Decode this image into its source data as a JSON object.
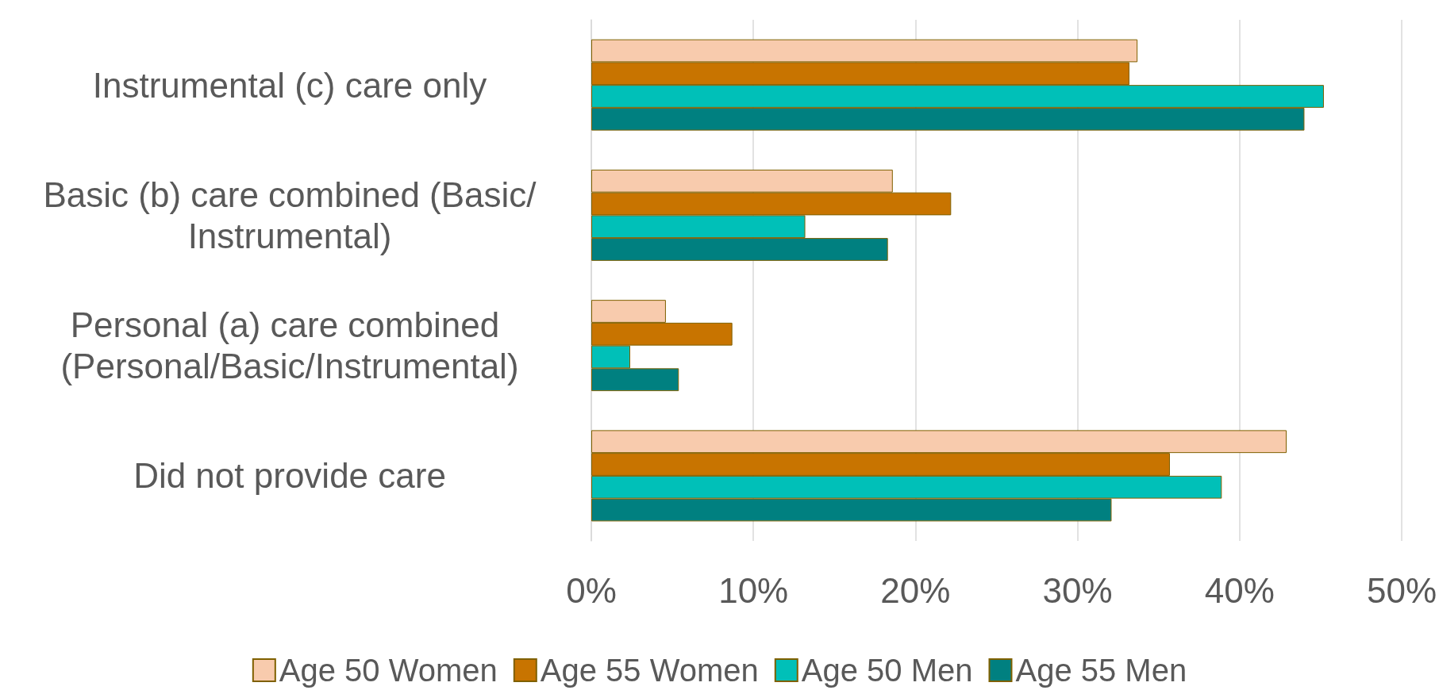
{
  "chart_data": {
    "type": "bar",
    "orientation": "horizontal",
    "categories": [
      "Instrumental (c) care only",
      "Basic (b) care combined (Basic/Instrumental)",
      "Personal (a) care combined (Personal/Basic/Instrumental)",
      "Did not provide care"
    ],
    "series": [
      {
        "name": "Age 50 Women",
        "color": "#f8cbad",
        "values": [
          33.7,
          18.6,
          4.6,
          42.9
        ]
      },
      {
        "name": "Age 55 Women",
        "color": "#c87400",
        "values": [
          33.2,
          22.2,
          8.7,
          35.7
        ]
      },
      {
        "name": "Age 50 Men",
        "color": "#00c0b8",
        "values": [
          45.2,
          13.2,
          2.4,
          38.9
        ]
      },
      {
        "name": "Age 55 Men",
        "color": "#008080",
        "values": [
          44.0,
          18.3,
          5.4,
          32.1
        ]
      }
    ],
    "xlim": [
      0,
      50
    ],
    "xticks": [
      {
        "value": 0,
        "label": "0%"
      },
      {
        "value": 10,
        "label": "10%"
      },
      {
        "value": 20,
        "label": "20%"
      },
      {
        "value": 30,
        "label": "30%"
      },
      {
        "value": 40,
        "label": "40%"
      },
      {
        "value": 50,
        "label": "50%"
      }
    ],
    "grid": "x",
    "legend": "bottom"
  }
}
